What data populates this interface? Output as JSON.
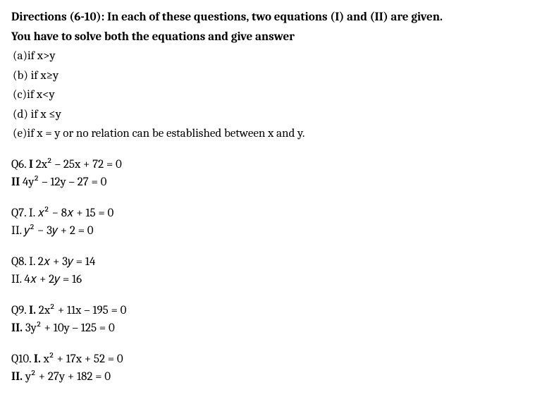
{
  "directions": {
    "line1": "Directions (6-10): In each of these questions, two equations (I) and (II) are given.",
    "line2": "You have to solve both the equations and give answer"
  },
  "options": {
    "a": "(a)if x>y",
    "b": "(b)   if x≥y",
    "c": "(c)if x<y",
    "d": "(d)   if x ≤y",
    "e": "(e)if x = y or no relation can be established between x and y."
  },
  "questions": {
    "q6": {
      "label": "Q6.   ",
      "eq1_prefix": "I ",
      "eq1_text": "2x² – 25x + 72 = 0",
      "eq2_prefix": "II ",
      "eq2_text": "4y² – 12y – 27 = 0"
    },
    "q7": {
      "label": "Q7. I. ",
      "eq1_text": "𝑥² − 8𝑥 + 15 = 0",
      "eq2_prefix": "II. ",
      "eq2_text": "𝑦² − 3𝑦 + 2 = 0"
    },
    "q8": {
      "label": "Q8. I. ",
      "eq1_text": "2𝑥 + 3𝑦 = 14",
      "eq2_prefix": "II. ",
      "eq2_text": "4𝑥  +  2𝑦 = 16"
    },
    "q9": {
      "label": "Q9.   ",
      "eq1_prefix": "I. ",
      "eq1_text": "2x² + 11x – 195 = 0",
      "eq2_prefix": "II. ",
      "eq2_text": "3y² + 10y – 125 = 0"
    },
    "q10": {
      "label": "Q10.    ",
      "eq1_prefix": "I. ",
      "eq1_text": "x² + 17x + 52 = 0",
      "eq2_prefix": "II. ",
      "eq2_text": "y² + 27y + 182 = 0"
    }
  }
}
